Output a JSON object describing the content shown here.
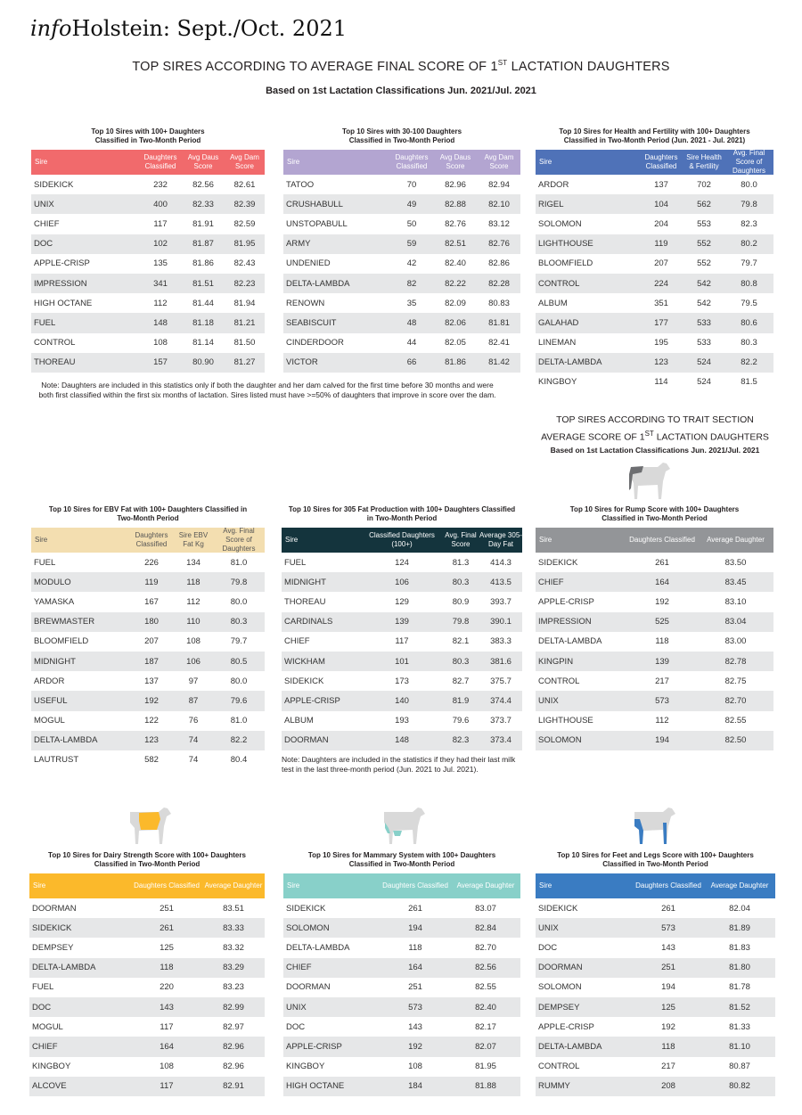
{
  "masthead": {
    "info": "info",
    "rest": "Holstein: Sept./Oct. 2021"
  },
  "heading": {
    "main_pre": "TOP SIRES ACCORDING TO AVERAGE FINAL SCORE OF 1",
    "main_sup": "ST",
    "main_post": " LACTATION DAUGHTERS",
    "sub": "Based on 1st Lactation Classifications Jun. 2021/Jul. 2021"
  },
  "trait_heading": {
    "line1": "TOP SIRES ACCORDING TO TRAIT SECTION",
    "line2_pre": "AVERAGE SCORE OF 1",
    "line2_sup": "ST",
    "line2_post": " LACTATION DAUGHTERS",
    "sub": "Based on 1st Lactation Classifications Jun. 2021/Jul. 2021"
  },
  "notes": {
    "classification": "Note: Daughters are included in this statistics only if both the daughter and her dam calved for the first time before 30 months and were both first classified within the first six months of lactation.  Sires listed must have >=50% of daughters that improve in score over the dam.",
    "fat": "Note: Daughters are included in the statistics if they had their last milk test in the last three-month period (Jun. 2021 to Jul. 2021)."
  },
  "tables": [
    {
      "id": "t100",
      "title": [
        "Top 10 Sires with 100+ Daughters",
        "Classified in Two-Month Period"
      ],
      "color": "#f16a6c",
      "text_color": "#ffffff",
      "headers": [
        "Sire",
        "Daughters Classified",
        "Avg Daus Score",
        "Avg Dam Score"
      ],
      "rows": [
        [
          "SIDEKICK",
          "232",
          "82.56",
          "82.61"
        ],
        [
          "UNIX",
          "400",
          "82.33",
          "82.39"
        ],
        [
          "CHIEF",
          "117",
          "81.91",
          "82.59"
        ],
        [
          "DOC",
          "102",
          "81.87",
          "81.95"
        ],
        [
          "APPLE-CRISP",
          "135",
          "81.86",
          "82.43"
        ],
        [
          "IMPRESSION",
          "341",
          "81.51",
          "82.23"
        ],
        [
          "HIGH OCTANE",
          "112",
          "81.44",
          "81.94"
        ],
        [
          "FUEL",
          "148",
          "81.18",
          "81.21"
        ],
        [
          "CONTROL",
          "108",
          "81.14",
          "81.50"
        ],
        [
          "THOREAU",
          "157",
          "80.90",
          "81.27"
        ]
      ]
    },
    {
      "id": "t30",
      "title": [
        "Top 10 Sires with 30-100 Daughters",
        "Classified in Two-Month Period"
      ],
      "color": "#b3a5d1",
      "text_color": "#ffffff",
      "headers": [
        "Sire",
        "Daughters Classified",
        "Avg Daus Score",
        "Avg Dam Score"
      ],
      "rows": [
        [
          "TATOO",
          "70",
          "82.96",
          "82.94"
        ],
        [
          "CRUSHABULL",
          "49",
          "82.88",
          "82.10"
        ],
        [
          "UNSTOPABULL",
          "50",
          "82.76",
          "83.12"
        ],
        [
          "ARMY",
          "59",
          "82.51",
          "82.76"
        ],
        [
          "UNDENIED",
          "42",
          "82.40",
          "82.86"
        ],
        [
          "DELTA-LAMBDA",
          "82",
          "82.22",
          "82.28"
        ],
        [
          "RENOWN",
          "35",
          "82.09",
          "80.83"
        ],
        [
          "SEABISCUIT",
          "48",
          "82.06",
          "81.81"
        ],
        [
          "CINDERDOOR",
          "44",
          "82.05",
          "82.41"
        ],
        [
          "VICTOR",
          "66",
          "81.86",
          "81.42"
        ]
      ]
    },
    {
      "id": "thf",
      "title": [
        "Top 10 Sires for Health and Fertility with 100+ Daughters",
        "Classified in Two-Month Period (Jun. 2021 - Jul. 2021)"
      ],
      "color": "#4f72b8",
      "text_color": "#ffffff",
      "headers": [
        "Sire",
        "Daughters Classified",
        "Sire Health & Fertility",
        "Avg. Final Score of Daughters"
      ],
      "rows": [
        [
          "ARDOR",
          "137",
          "702",
          "80.0"
        ],
        [
          "RIGEL",
          "104",
          "562",
          "79.8"
        ],
        [
          "SOLOMON",
          "204",
          "553",
          "82.3"
        ],
        [
          "LIGHTHOUSE",
          "119",
          "552",
          "80.2"
        ],
        [
          "BLOOMFIELD",
          "207",
          "552",
          "79.7"
        ],
        [
          "CONTROL",
          "224",
          "542",
          "80.8"
        ],
        [
          "ALBUM",
          "351",
          "542",
          "79.5"
        ],
        [
          "GALAHAD",
          "177",
          "533",
          "80.6"
        ],
        [
          "LINEMAN",
          "195",
          "533",
          "80.3"
        ],
        [
          "DELTA-LAMBDA",
          "123",
          "524",
          "82.2"
        ],
        [
          "KINGBOY",
          "114",
          "524",
          "81.5"
        ]
      ]
    },
    {
      "id": "tebv",
      "title": [
        "Top 10 Sires for EBV Fat with 100+ Daughters Classified in",
        "Two-Month Period"
      ],
      "color": "#f3deb0",
      "text_color": "#555555",
      "headers": [
        "Sire",
        "Daughters Classified",
        "Sire EBV Fat Kg",
        "Avg. Final Score of Daughters"
      ],
      "rows": [
        [
          "FUEL",
          "226",
          "134",
          "81.0"
        ],
        [
          "MODULO",
          "119",
          "118",
          "79.8"
        ],
        [
          "YAMASKA",
          "167",
          "112",
          "80.0"
        ],
        [
          "BREWMASTER",
          "180",
          "110",
          "80.3"
        ],
        [
          "BLOOMFIELD",
          "207",
          "108",
          "79.7"
        ],
        [
          "MIDNIGHT",
          "187",
          "106",
          "80.5"
        ],
        [
          "ARDOR",
          "137",
          "97",
          "80.0"
        ],
        [
          "USEFUL",
          "192",
          "87",
          "79.6"
        ],
        [
          "MOGUL",
          "122",
          "76",
          "81.0"
        ],
        [
          "DELTA-LAMBDA",
          "123",
          "74",
          "82.2"
        ],
        [
          "LAUTRUST",
          "582",
          "74",
          "80.4"
        ]
      ]
    },
    {
      "id": "t305",
      "title": [
        "Top 10 Sires for 305 Fat Production with 100+ Daughters Classified",
        "in Two-Month Period"
      ],
      "color": "#14343d",
      "text_color": "#ffffff",
      "headers": [
        "Sire",
        "Classified Daughters (100+)",
        "Avg. Final Score",
        "Average 305-Day Fat"
      ],
      "rows": [
        [
          "FUEL",
          "124",
          "81.3",
          "414.3"
        ],
        [
          "MIDNIGHT",
          "106",
          "80.3",
          "413.5"
        ],
        [
          "THOREAU",
          "129",
          "80.9",
          "393.7"
        ],
        [
          "CARDINALS",
          "139",
          "79.8",
          "390.1"
        ],
        [
          "CHIEF",
          "117",
          "82.1",
          "383.3"
        ],
        [
          "WICKHAM",
          "101",
          "80.3",
          "381.6"
        ],
        [
          "SIDEKICK",
          "173",
          "82.7",
          "375.7"
        ],
        [
          "APPLE-CRISP",
          "140",
          "81.9",
          "374.4"
        ],
        [
          "ALBUM",
          "193",
          "79.6",
          "373.7"
        ],
        [
          "DOORMAN",
          "148",
          "82.3",
          "373.4"
        ]
      ]
    },
    {
      "id": "trump",
      "title": [
        "Top 10 Sires for Rump Score with 100+ Daughters",
        "Classified in Two-Month Period"
      ],
      "color": "#939598",
      "text_color": "#ffffff",
      "headers": [
        "Sire",
        "Daughters Classified",
        "Average Daughter"
      ],
      "rows": [
        [
          "SIDEKICK",
          "261",
          "83.50"
        ],
        [
          "CHIEF",
          "164",
          "83.45"
        ],
        [
          "APPLE-CRISP",
          "192",
          "83.10"
        ],
        [
          "IMPRESSION",
          "525",
          "83.04"
        ],
        [
          "DELTA-LAMBDA",
          "118",
          "83.00"
        ],
        [
          "KINGPIN",
          "139",
          "82.78"
        ],
        [
          "CONTROL",
          "217",
          "82.75"
        ],
        [
          "UNIX",
          "573",
          "82.70"
        ],
        [
          "LIGHTHOUSE",
          "112",
          "82.55"
        ],
        [
          "SOLOMON",
          "194",
          "82.50"
        ]
      ]
    },
    {
      "id": "tdairy",
      "title": [
        "Top 10 Sires for Dairy Strength Score with 100+ Daughters",
        "Classified in Two-Month Period"
      ],
      "color": "#fbb92b",
      "text_color": "#ffffff",
      "headers": [
        "Sire",
        "Daughters Classified",
        "Average Daughter"
      ],
      "rows": [
        [
          "DOORMAN",
          "251",
          "83.51"
        ],
        [
          "SIDEKICK",
          "261",
          "83.33"
        ],
        [
          "DEMPSEY",
          "125",
          "83.32"
        ],
        [
          "DELTA-LAMBDA",
          "118",
          "83.29"
        ],
        [
          "FUEL",
          "220",
          "83.23"
        ],
        [
          "DOC",
          "143",
          "82.99"
        ],
        [
          "MOGUL",
          "117",
          "82.97"
        ],
        [
          "CHIEF",
          "164",
          "82.96"
        ],
        [
          "KINGBOY",
          "108",
          "82.96"
        ],
        [
          "ALCOVE",
          "117",
          "82.91"
        ]
      ]
    },
    {
      "id": "tmam",
      "title": [
        "Top 10 Sires for Mammary System with 100+ Daughters",
        "Classified in Two-Month Period"
      ],
      "color": "#88d0c9",
      "text_color": "#ffffff",
      "headers": [
        "Sire",
        "Daughters Classified",
        "Average Daughter"
      ],
      "rows": [
        [
          "SIDEKICK",
          "261",
          "83.07"
        ],
        [
          "SOLOMON",
          "194",
          "82.84"
        ],
        [
          "DELTA-LAMBDA",
          "118",
          "82.70"
        ],
        [
          "CHIEF",
          "164",
          "82.56"
        ],
        [
          "DOORMAN",
          "251",
          "82.55"
        ],
        [
          "UNIX",
          "573",
          "82.40"
        ],
        [
          "DOC",
          "143",
          "82.17"
        ],
        [
          "APPLE-CRISP",
          "192",
          "82.07"
        ],
        [
          "KINGBOY",
          "108",
          "81.95"
        ],
        [
          "HIGH OCTANE",
          "184",
          "81.88"
        ]
      ]
    },
    {
      "id": "tfeet",
      "title": [
        "Top 10 Sires for Feet and Legs Score with 100+ Daughters",
        "Classified in Two-Month Period"
      ],
      "color": "#3a7cc2",
      "text_color": "#ffffff",
      "headers": [
        "Sire",
        "Daughters Classified",
        "Average Daughter"
      ],
      "rows": [
        [
          "SIDEKICK",
          "261",
          "82.04"
        ],
        [
          "UNIX",
          "573",
          "81.89"
        ],
        [
          "DOC",
          "143",
          "81.83"
        ],
        [
          "DOORMAN",
          "251",
          "81.80"
        ],
        [
          "SOLOMON",
          "194",
          "81.78"
        ],
        [
          "DEMPSEY",
          "125",
          "81.52"
        ],
        [
          "APPLE-CRISP",
          "192",
          "81.33"
        ],
        [
          "DELTA-LAMBDA",
          "118",
          "81.10"
        ],
        [
          "CONTROL",
          "217",
          "80.87"
        ],
        [
          "RUMMY",
          "208",
          "80.82"
        ]
      ]
    }
  ],
  "icons": {
    "rump": "cow-rump-icon",
    "dairy": "cow-dairy-strength-icon",
    "mammary": "cow-mammary-icon",
    "feet": "cow-feet-legs-icon"
  },
  "colors": {
    "rump": "#6d6e71",
    "dairy": "#fbb92b",
    "mammary": "#88d0c9",
    "feet": "#3a7cc2",
    "cow": "#d9d9d9"
  }
}
